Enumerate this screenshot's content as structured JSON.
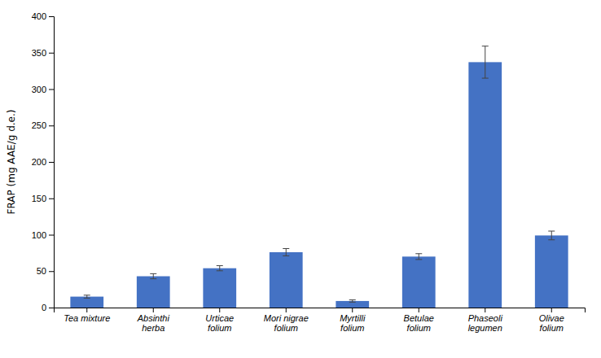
{
  "chart_data": {
    "type": "bar",
    "categories": [
      "Tea mixture",
      "Absinthi\nherba",
      "Urticae\nfolium",
      "Mori nigrae\nfolium",
      "Myrtilli\nfolium",
      "Betulae\nfolium",
      "Phaseoli\nlegumen",
      "Olivae\nfolium"
    ],
    "values": [
      15.0,
      43.0,
      54.0,
      76.0,
      9.0,
      70.0,
      337.0,
      99.0
    ],
    "errors": [
      2.0,
      3.5,
      3.5,
      5.0,
      1.5,
      4.0,
      22.0,
      6.0
    ],
    "color": "#4472C4",
    "ylabel": "FRAP (mg AAE/g d.e.)",
    "ylim": [
      0,
      400
    ],
    "yticks": [
      0,
      50,
      100,
      150,
      200,
      250,
      300,
      350,
      400
    ],
    "grid": false
  }
}
